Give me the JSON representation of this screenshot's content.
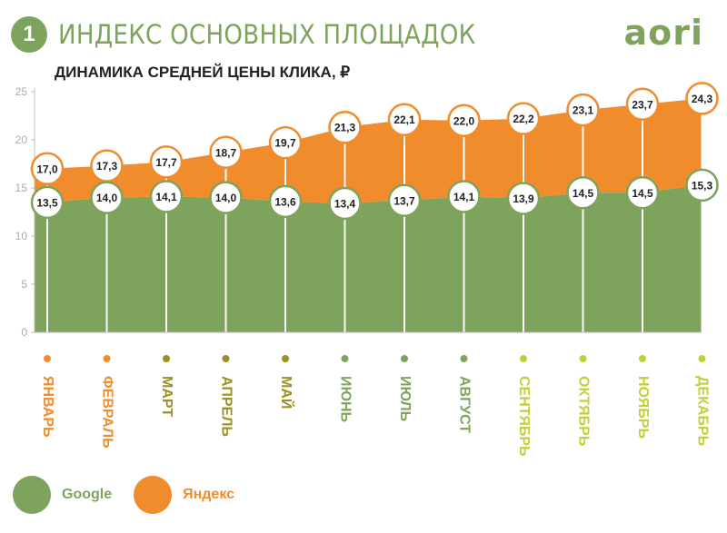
{
  "header": {
    "number": "1",
    "title": "ИНДЕКС ОСНОВНЫХ ПЛОЩАДОК",
    "logo": "aori"
  },
  "colors": {
    "google": "#7ea35c",
    "yandex": "#f08c2c",
    "month_orange": "#f08c2c",
    "month_olive": "#9b8f25",
    "month_green": "#7ea35c",
    "month_lime": "#c2cf3a"
  },
  "chart_data": {
    "type": "area",
    "title": "ДИНАМИКА СРЕДНЕЙ ЦЕНЫ КЛИКА, ₽",
    "categories": [
      "ЯНВАРЬ",
      "ФЕВРАЛЬ",
      "МАРТ",
      "АПРЕЛЬ",
      "МАЙ",
      "ИЮНЬ",
      "ИЮЛЬ",
      "АВГУСТ",
      "СЕНТЯБРЬ",
      "ОКТЯБРЬ",
      "НОЯБРЬ",
      "ДЕКАБРЬ"
    ],
    "category_colors": [
      "month_orange",
      "month_orange",
      "month_olive",
      "month_olive",
      "month_olive",
      "month_green",
      "month_green",
      "month_green",
      "month_lime",
      "month_lime",
      "month_lime",
      "month_lime"
    ],
    "series": [
      {
        "name": "Google",
        "color": "google",
        "values": [
          13.5,
          14.0,
          14.1,
          14.0,
          13.6,
          13.4,
          13.7,
          14.1,
          13.9,
          14.5,
          14.5,
          15.3
        ],
        "labels": [
          "13,5",
          "14,0",
          "14,1",
          "14,0",
          "13,6",
          "13,4",
          "13,7",
          "14,1",
          "13,9",
          "14,5",
          "14,5",
          "15,3"
        ]
      },
      {
        "name": "Яндекс",
        "color": "yandex",
        "values": [
          17.0,
          17.3,
          17.7,
          18.7,
          19.7,
          21.3,
          22.1,
          22.0,
          22.2,
          23.1,
          23.7,
          24.3
        ],
        "labels": [
          "17,0",
          "17,3",
          "17,7",
          "18,7",
          "19,7",
          "21,3",
          "22,1",
          "22,0",
          "22,2",
          "23,1",
          "23,7",
          "24,3"
        ]
      }
    ],
    "yticks": [
      "0",
      "5",
      "10",
      "15",
      "20",
      "25"
    ],
    "ylim": [
      0,
      25
    ],
    "grid": false,
    "legend": "bottom-left"
  },
  "legend": {
    "items": [
      "Google",
      "Яндекс"
    ]
  }
}
